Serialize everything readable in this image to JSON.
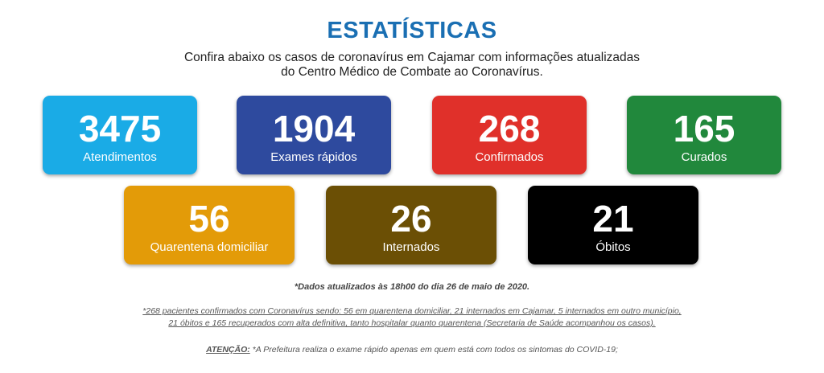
{
  "title": "ESTATÍSTICAS",
  "subtitle": {
    "line1": "Confira abaixo os casos de coronavírus em Cajamar com informações atualizadas",
    "line2": "do Centro Médico de Combate ao Coronavírus."
  },
  "cards": [
    {
      "value": "3475",
      "label": "Atendimentos",
      "color": "#1aabe6"
    },
    {
      "value": "1904",
      "label": "Exames rápidos",
      "color": "#2e4a9e"
    },
    {
      "value": "268",
      "label": "Confirmados",
      "color": "#e0302a"
    },
    {
      "value": "165",
      "label": "Curados",
      "color": "#21883c"
    },
    {
      "value": "56",
      "label": "Quarentena domiciliar",
      "color": "#e39b08"
    },
    {
      "value": "26",
      "label": "Internados",
      "color": "#6b4f05"
    },
    {
      "value": "21",
      "label": "Óbitos",
      "color": "#000000"
    }
  ],
  "updated_note": "*Dados atualizados às 18h00 do dia 26 de maio de 2020.",
  "footnote": {
    "line1": "*268 pacientes confirmados com Coronavírus sendo: 56 em quarentena domiciliar, 21 internados em Cajamar, 5 internados em outro município,",
    "line2": "21 óbitos e 165 recuperados com alta definitiva, tanto hospitalar quanto quarentena (Secretaria de Saúde acompanhou os casos)."
  },
  "warning": {
    "label": "ATENÇÃO:",
    "text": " *A Prefeitura realiza o exame rápido apenas em quem está com todos os sintomas do COVID-19;"
  }
}
